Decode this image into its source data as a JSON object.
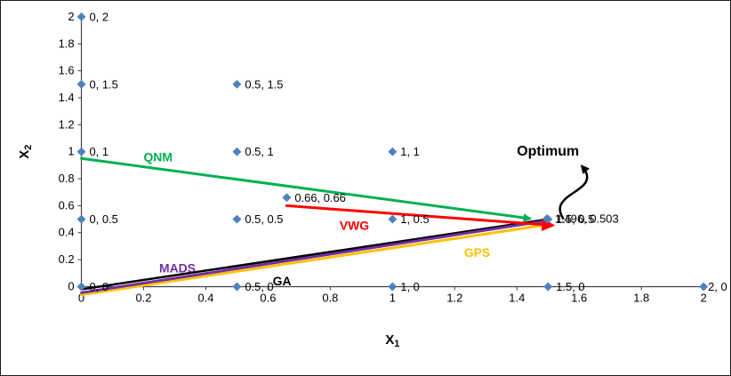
{
  "chart_data": {
    "type": "scatter",
    "title": "",
    "xlabel": {
      "base": "X",
      "sub": "1"
    },
    "ylabel": {
      "base": "X",
      "sub": "2"
    },
    "xlim": [
      0,
      2
    ],
    "ylim": [
      0,
      2
    ],
    "xticks": [
      "0",
      "0.2",
      "0.4",
      "0.6",
      "0.8",
      "1",
      "1.2",
      "1.4",
      "1.6",
      "1.8",
      "2"
    ],
    "yticks": [
      "0",
      "0.2",
      "0.4",
      "0.6",
      "0.8",
      "1",
      "1.2",
      "1.4",
      "1.6",
      "1.8",
      "2"
    ],
    "grid": false,
    "legend": "none",
    "marker": {
      "shape": "diamond",
      "color": "#4F81BD",
      "size": 5
    },
    "axis_color": "#404040",
    "points": [
      {
        "x": 0,
        "y": 2,
        "label": "0, 2"
      },
      {
        "x": 0,
        "y": 1.5,
        "label": "0, 1.5"
      },
      {
        "x": 0.5,
        "y": 1.5,
        "label": "0.5, 1.5"
      },
      {
        "x": 0,
        "y": 1,
        "label": "0, 1"
      },
      {
        "x": 0.5,
        "y": 1,
        "label": "0.5, 1"
      },
      {
        "x": 1,
        "y": 1,
        "label": "1, 1"
      },
      {
        "x": 0.66,
        "y": 0.66,
        "label": "0.66, 0.66"
      },
      {
        "x": 0,
        "y": 0.5,
        "label": "0, 0.5"
      },
      {
        "x": 0.5,
        "y": 0.5,
        "label": "0.5, 0.5"
      },
      {
        "x": 1,
        "y": 0.5,
        "label": "1, 0.5"
      },
      {
        "x": 1.496,
        "y": 0.503,
        "label": "1.496, 0.503"
      },
      {
        "x": 1.5,
        "y": 0.5,
        "label": "1.5, 0.5"
      },
      {
        "x": 0,
        "y": 0,
        "label": "0, 0"
      },
      {
        "x": 0.5,
        "y": 0,
        "label": "0.5, 0"
      },
      {
        "x": 1,
        "y": 0,
        "label": "1, 0"
      },
      {
        "x": 1.5,
        "y": 0,
        "label": "1.5, 0"
      },
      {
        "x": 2,
        "y": 0,
        "label": "2, 0",
        "dx": 5
      }
    ],
    "paths": [
      {
        "name": "GA",
        "color": "#000000",
        "width": 2.5,
        "from": [
          0,
          -0.02
        ],
        "to": [
          1.5,
          0.5
        ],
        "arrow": false,
        "arrow_size": 0,
        "label_pos": [
          0.615,
          0.01
        ]
      },
      {
        "name": "GPS",
        "color": "#FFC000",
        "width": 3,
        "from": [
          0,
          -0.06
        ],
        "to": [
          1.5,
          0.46
        ],
        "arrow": false,
        "arrow_size": 0,
        "label_pos": [
          1.23,
          0.22
        ]
      },
      {
        "name": "MADS",
        "color": "#7030A0",
        "width": 3,
        "from": [
          0,
          -0.045
        ],
        "to": [
          1.5,
          0.49
        ],
        "arrow": false,
        "arrow_size": 0,
        "label_pos": [
          0.25,
          0.105
        ]
      },
      {
        "name": "QNM",
        "color": "#00B050",
        "width": 3,
        "from": [
          0,
          0.95
        ],
        "to": [
          1.44,
          0.505
        ],
        "arrow": true,
        "arrow_size": 3.2,
        "label_pos": [
          0.2,
          0.93
        ]
      },
      {
        "name": "VWG",
        "color": "#FF0000",
        "width": 3,
        "from": [
          0.66,
          0.6
        ],
        "to": [
          1.51,
          0.455
        ],
        "arrow": true,
        "arrow_size": 5,
        "label_pos": [
          0.83,
          0.42
        ]
      }
    ],
    "annotation": {
      "text": "Optimum",
      "text_pos": [
        1.4,
        0.97
      ],
      "arrow_color": "#000000",
      "arrow_curve": [
        [
          1.55,
          0.5
        ],
        [
          1.49,
          0.7
        ],
        [
          1.68,
          0.7
        ],
        [
          1.61,
          0.89
        ]
      ]
    }
  }
}
